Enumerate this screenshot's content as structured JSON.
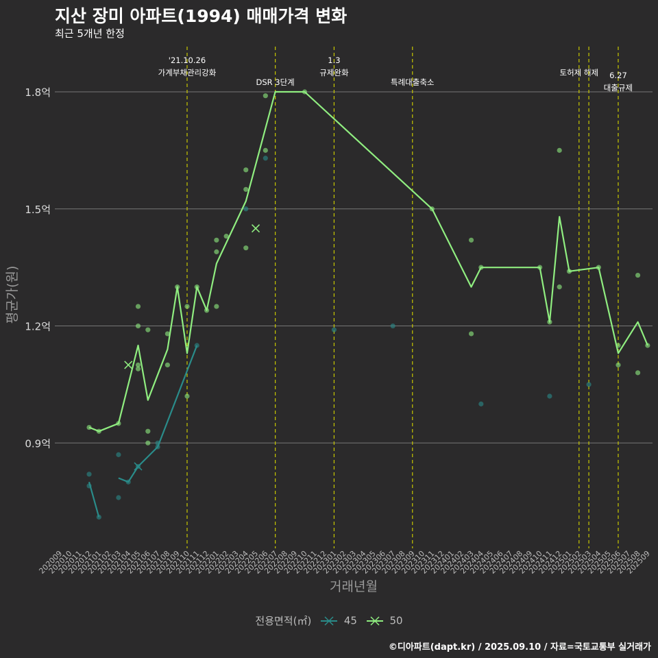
{
  "title": "지산 장미 아파트(1994) 매매가격 변화",
  "subtitle": "최근 5개년 한정",
  "caption": "©디아파트(dapt.kr) / 2025.09.10 / 자료=국토교통부 실거래가",
  "legend": {
    "title": "전용면적(㎡)",
    "items": [
      "45",
      "50"
    ]
  },
  "colors": {
    "s45": "#2a8c8a",
    "s50": "#90ee80",
    "vline": "#c8c800",
    "grid": "#777777",
    "bg": "#2b2a2b"
  },
  "chart_data": {
    "type": "line",
    "xlabel": "거래년월",
    "ylabel": "평균가(원)",
    "ylim": [
      0.63,
      1.93
    ],
    "yticks": [
      0.9,
      1.2,
      1.5,
      1.8
    ],
    "ytick_labels": [
      "0.9억",
      "1.2억",
      "1.5억",
      "1.8억"
    ],
    "months": [
      "202009",
      "202010",
      "202011",
      "202012",
      "202101",
      "202102",
      "202103",
      "202104",
      "202105",
      "202106",
      "202107",
      "202108",
      "202109",
      "202110",
      "202111",
      "202112",
      "202201",
      "202202",
      "202203",
      "202204",
      "202205",
      "202206",
      "202207",
      "202208",
      "202209",
      "202210",
      "202211",
      "202212",
      "202301",
      "202302",
      "202303",
      "202304",
      "202305",
      "202306",
      "202307",
      "202308",
      "202309",
      "202310",
      "202311",
      "202312",
      "202401",
      "202402",
      "202403",
      "202404",
      "202405",
      "202406",
      "202407",
      "202408",
      "202409",
      "202410",
      "202411",
      "202412",
      "202501",
      "202502",
      "202503",
      "202504",
      "202505",
      "202506",
      "202507",
      "202508",
      "202509"
    ],
    "series": [
      {
        "name": "45",
        "line": [
          [
            [
              "202012",
              0.8
            ],
            [
              "202101",
              0.71
            ]
          ],
          [
            [
              "202103",
              0.81
            ],
            [
              "202104",
              0.8
            ],
            [
              "202105",
              0.84
            ],
            [
              "202107",
              0.89
            ],
            [
              "202111",
              1.15
            ]
          ]
        ],
        "points": [
          [
            "202012",
            0.82
          ],
          [
            "202012",
            0.79
          ],
          [
            "202101",
            0.71
          ],
          [
            "202103",
            0.87
          ],
          [
            "202103",
            0.76
          ],
          [
            "202104",
            0.8
          ],
          [
            "202105",
            0.84
          ],
          [
            "202107",
            0.89
          ],
          [
            "202107",
            0.9
          ],
          [
            "202111",
            1.15
          ],
          [
            "202204",
            1.5
          ],
          [
            "202206",
            1.63
          ],
          [
            "202301",
            1.19
          ],
          [
            "202307",
            1.2
          ],
          [
            "202404",
            1.0
          ],
          [
            "202411",
            1.02
          ],
          [
            "202503",
            1.05
          ]
        ],
        "x_markers": [
          [
            "202105",
            0.84
          ]
        ]
      },
      {
        "name": "50",
        "line": [
          [
            "202012",
            0.94
          ],
          [
            "202101",
            0.93
          ],
          [
            "202103",
            0.95
          ],
          [
            "202105",
            1.15
          ],
          [
            "202106",
            1.01
          ],
          [
            "202108",
            1.14
          ],
          [
            "202109",
            1.3
          ],
          [
            "202110",
            1.13
          ],
          [
            "202111",
            1.3
          ],
          [
            "202112",
            1.24
          ],
          [
            "202201",
            1.36
          ],
          [
            "202204",
            1.52
          ],
          [
            "202207",
            1.8
          ],
          [
            "202210",
            1.8
          ],
          [
            "202311",
            1.5
          ],
          [
            "202403",
            1.3
          ],
          [
            "202404",
            1.35
          ],
          [
            "202410",
            1.35
          ],
          [
            "202411",
            1.21
          ],
          [
            "202412",
            1.48
          ],
          [
            "202501",
            1.34
          ],
          [
            "202504",
            1.35
          ],
          [
            "202506",
            1.13
          ],
          [
            "202508",
            1.21
          ],
          [
            "202509",
            1.15
          ]
        ],
        "points": [
          [
            "202012",
            0.94
          ],
          [
            "202101",
            0.93
          ],
          [
            "202103",
            0.95
          ],
          [
            "202105",
            1.25
          ],
          [
            "202105",
            1.2
          ],
          [
            "202105",
            1.1
          ],
          [
            "202105",
            1.09
          ],
          [
            "202106",
            1.19
          ],
          [
            "202106",
            0.93
          ],
          [
            "202106",
            0.9
          ],
          [
            "202108",
            1.18
          ],
          [
            "202108",
            1.1
          ],
          [
            "202109",
            1.3
          ],
          [
            "202110",
            1.25
          ],
          [
            "202110",
            1.02
          ],
          [
            "202111",
            1.3
          ],
          [
            "202112",
            1.24
          ],
          [
            "202201",
            1.42
          ],
          [
            "202201",
            1.39
          ],
          [
            "202201",
            1.25
          ],
          [
            "202202",
            1.43
          ],
          [
            "202204",
            1.6
          ],
          [
            "202204",
            1.55
          ],
          [
            "202204",
            1.4
          ],
          [
            "202206",
            1.79
          ],
          [
            "202206",
            1.65
          ],
          [
            "202210",
            1.8
          ],
          [
            "202311",
            1.5
          ],
          [
            "202403",
            1.42
          ],
          [
            "202403",
            1.18
          ],
          [
            "202404",
            1.35
          ],
          [
            "202410",
            1.35
          ],
          [
            "202411",
            1.21
          ],
          [
            "202412",
            1.65
          ],
          [
            "202412",
            1.3
          ],
          [
            "202501",
            1.34
          ],
          [
            "202504",
            1.35
          ],
          [
            "202506",
            1.15
          ],
          [
            "202506",
            1.1
          ],
          [
            "202508",
            1.33
          ],
          [
            "202508",
            1.08
          ],
          [
            "202509",
            1.15
          ]
        ],
        "x_markers": [
          [
            "202104",
            1.1
          ],
          [
            "202205",
            1.45
          ]
        ]
      }
    ],
    "annotations": [
      {
        "month": "202110",
        "lines": [
          "'21.10.26",
          "가계부채관리강화"
        ],
        "row": 0
      },
      {
        "month": "202207",
        "lines": [
          "DSR 3단계"
        ],
        "row": 1
      },
      {
        "month": "202301",
        "lines": [
          "1.3",
          "규제완화"
        ],
        "row": 0
      },
      {
        "month": "202309",
        "lines": [
          "특례대출축소"
        ],
        "row": 1
      },
      {
        "month": "202502",
        "lines": [
          "토허제 해제"
        ],
        "row": 0
      },
      {
        "month": "202503",
        "lines": [],
        "row": 0
      },
      {
        "month": "202506",
        "lines": [
          "6.27",
          "대출규제"
        ],
        "row": 2
      }
    ]
  }
}
